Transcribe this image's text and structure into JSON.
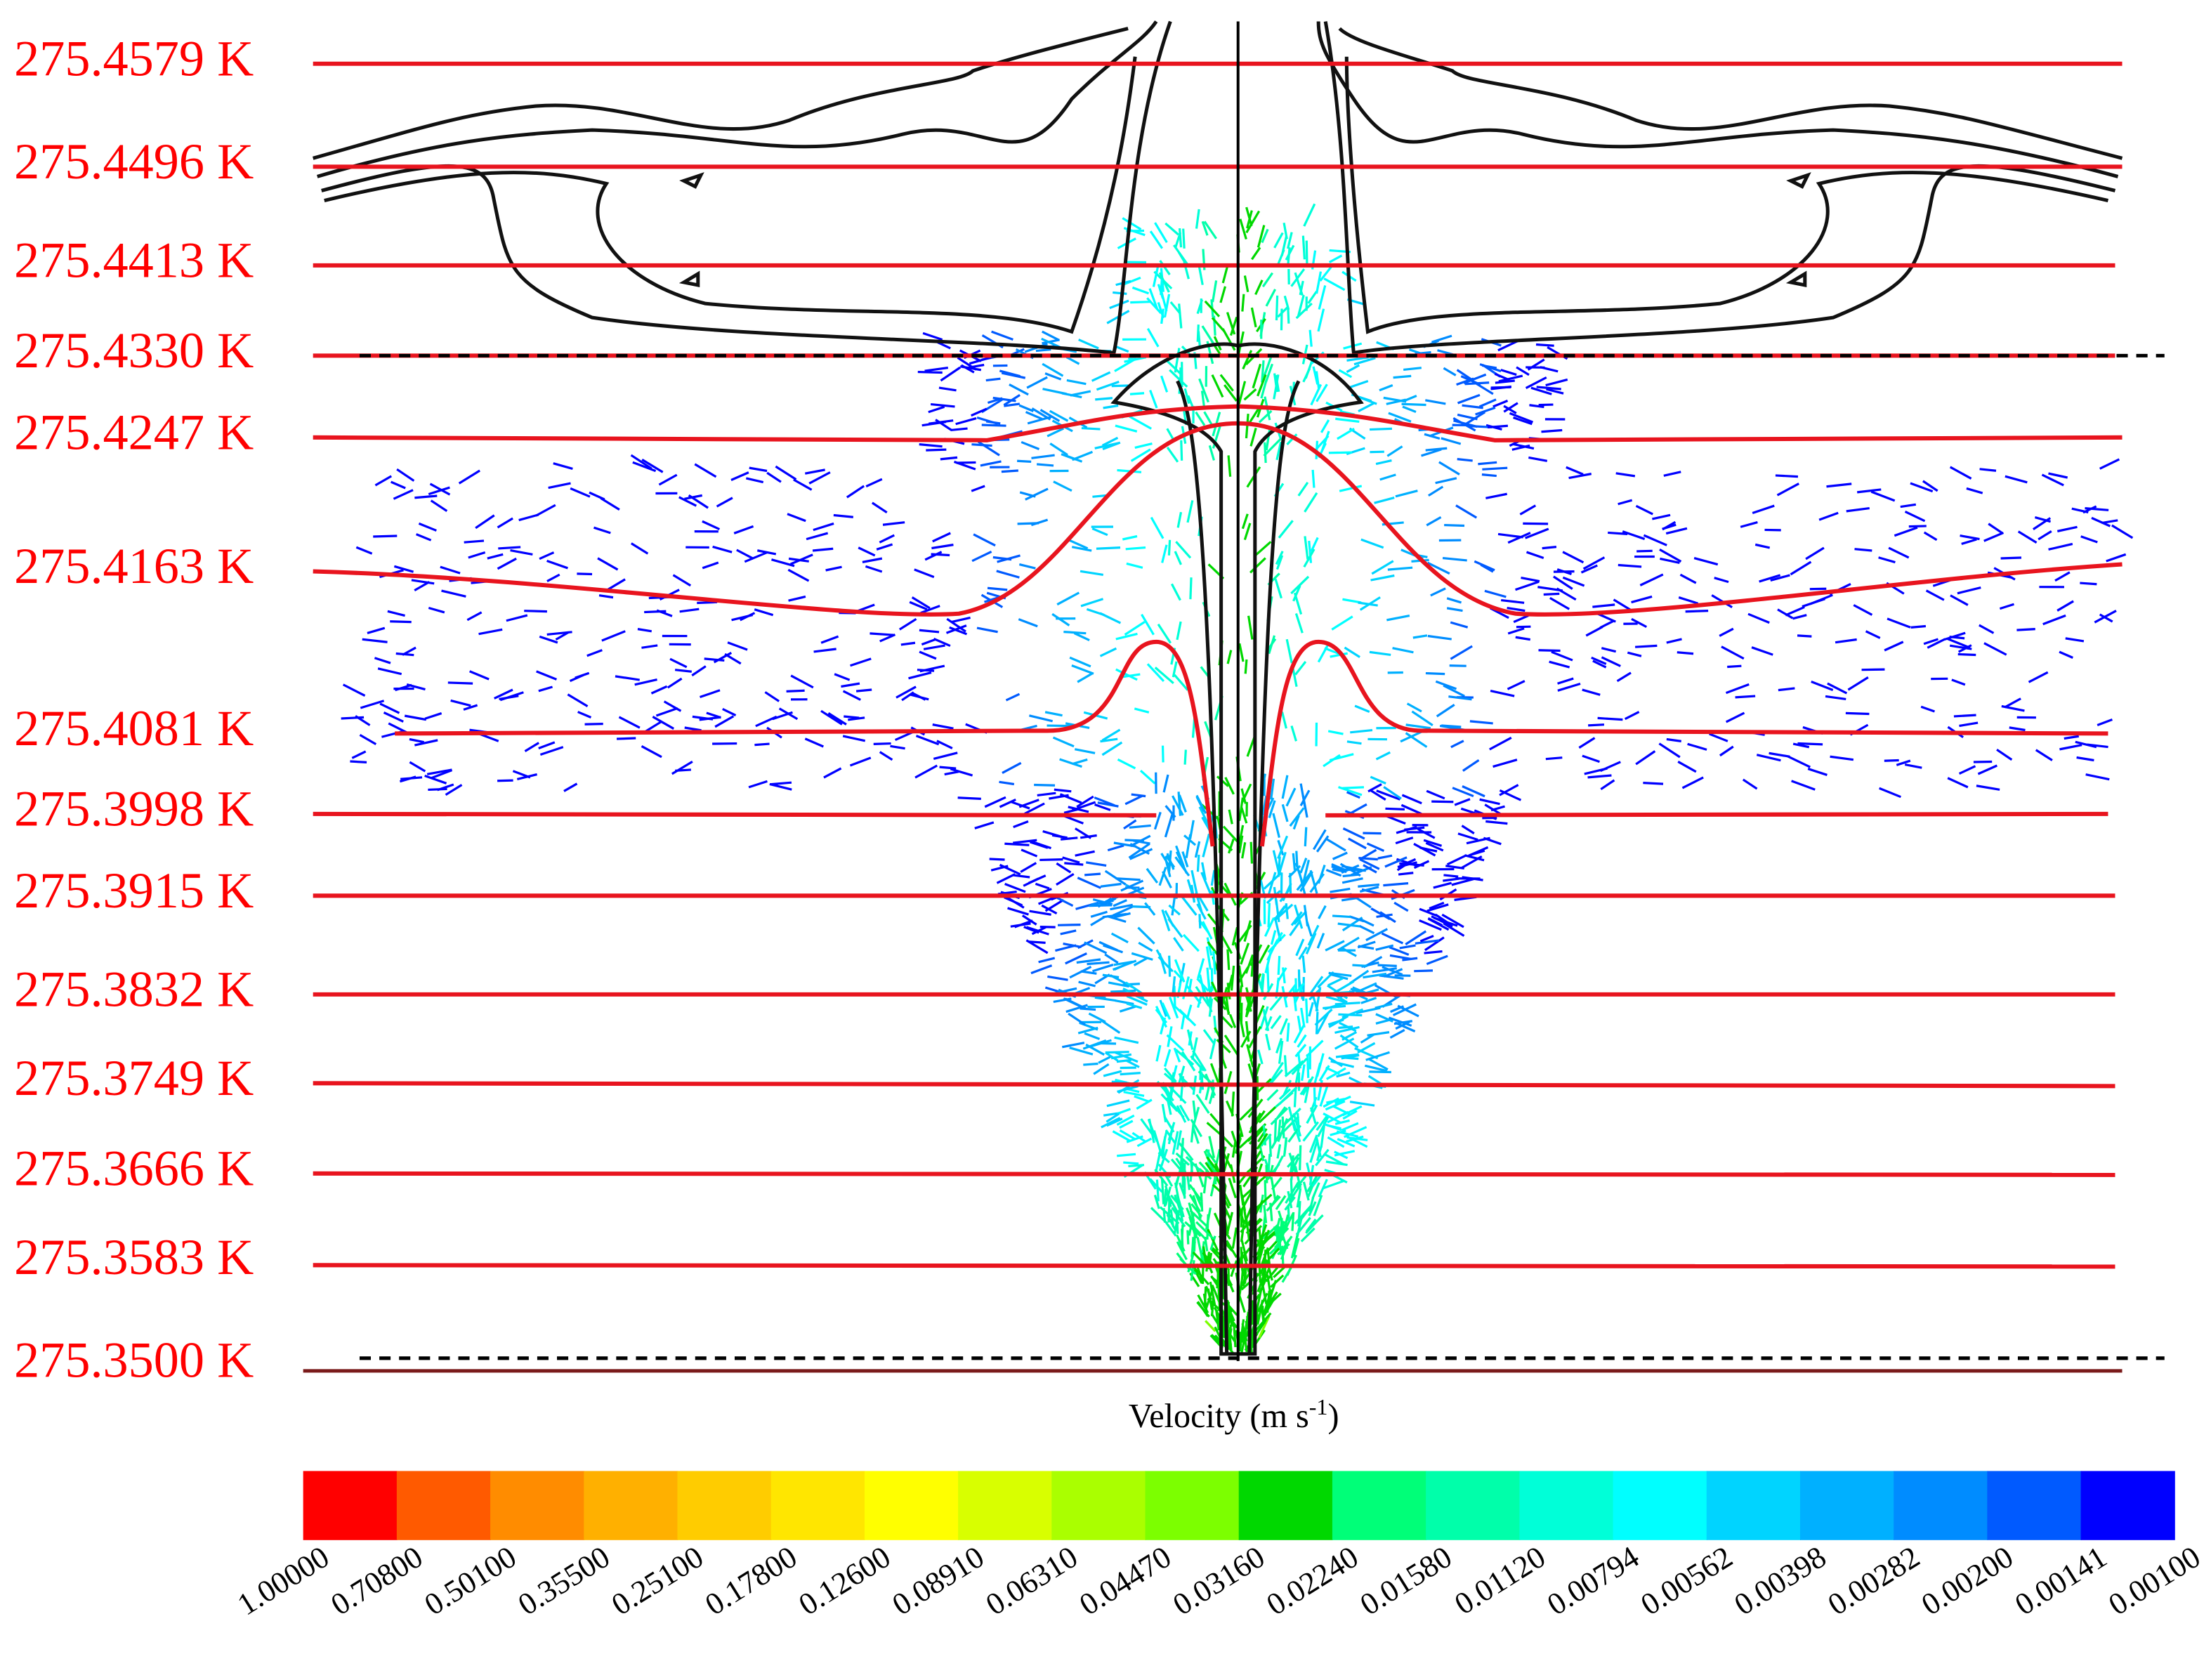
{
  "isotherms": [
    "275.4579 K",
    "275.4496 K",
    "275.4413 K",
    "275.4330 K",
    "275.4247 K",
    "275.4163 K",
    "275.4081 K",
    "275.3998 K",
    "275.3915 K",
    "275.3832 K",
    "275.3749 K",
    "275.3666 K",
    "275.3583 K",
    "275.3500 K"
  ],
  "colorbar": {
    "title": "Velocity (m s",
    "title_superscript": "-1",
    "title_end": ")",
    "labels": [
      "1.00000",
      "0.70800",
      "0.50100",
      "0.35500",
      "0.25100",
      "0.17800",
      "0.12600",
      "0.08910",
      "0.06310",
      "0.04470",
      "0.03160",
      "0.02240",
      "0.01580",
      "0.01120",
      "0.00794",
      "0.00562",
      "0.00398",
      "0.00282",
      "0.00200",
      "0.00141",
      "0.00100"
    ],
    "colors": [
      "#ff0000",
      "#ff5a00",
      "#ff8c00",
      "#ffb000",
      "#ffcc00",
      "#ffe600",
      "#ffff00",
      "#d8ff00",
      "#aaff00",
      "#7cff00",
      "#00d800",
      "#00ff78",
      "#00ffaa",
      "#00ffd8",
      "#00ffff",
      "#00d4ff",
      "#00b0ff",
      "#008cff",
      "#005aff",
      "#0000ff"
    ]
  }
}
